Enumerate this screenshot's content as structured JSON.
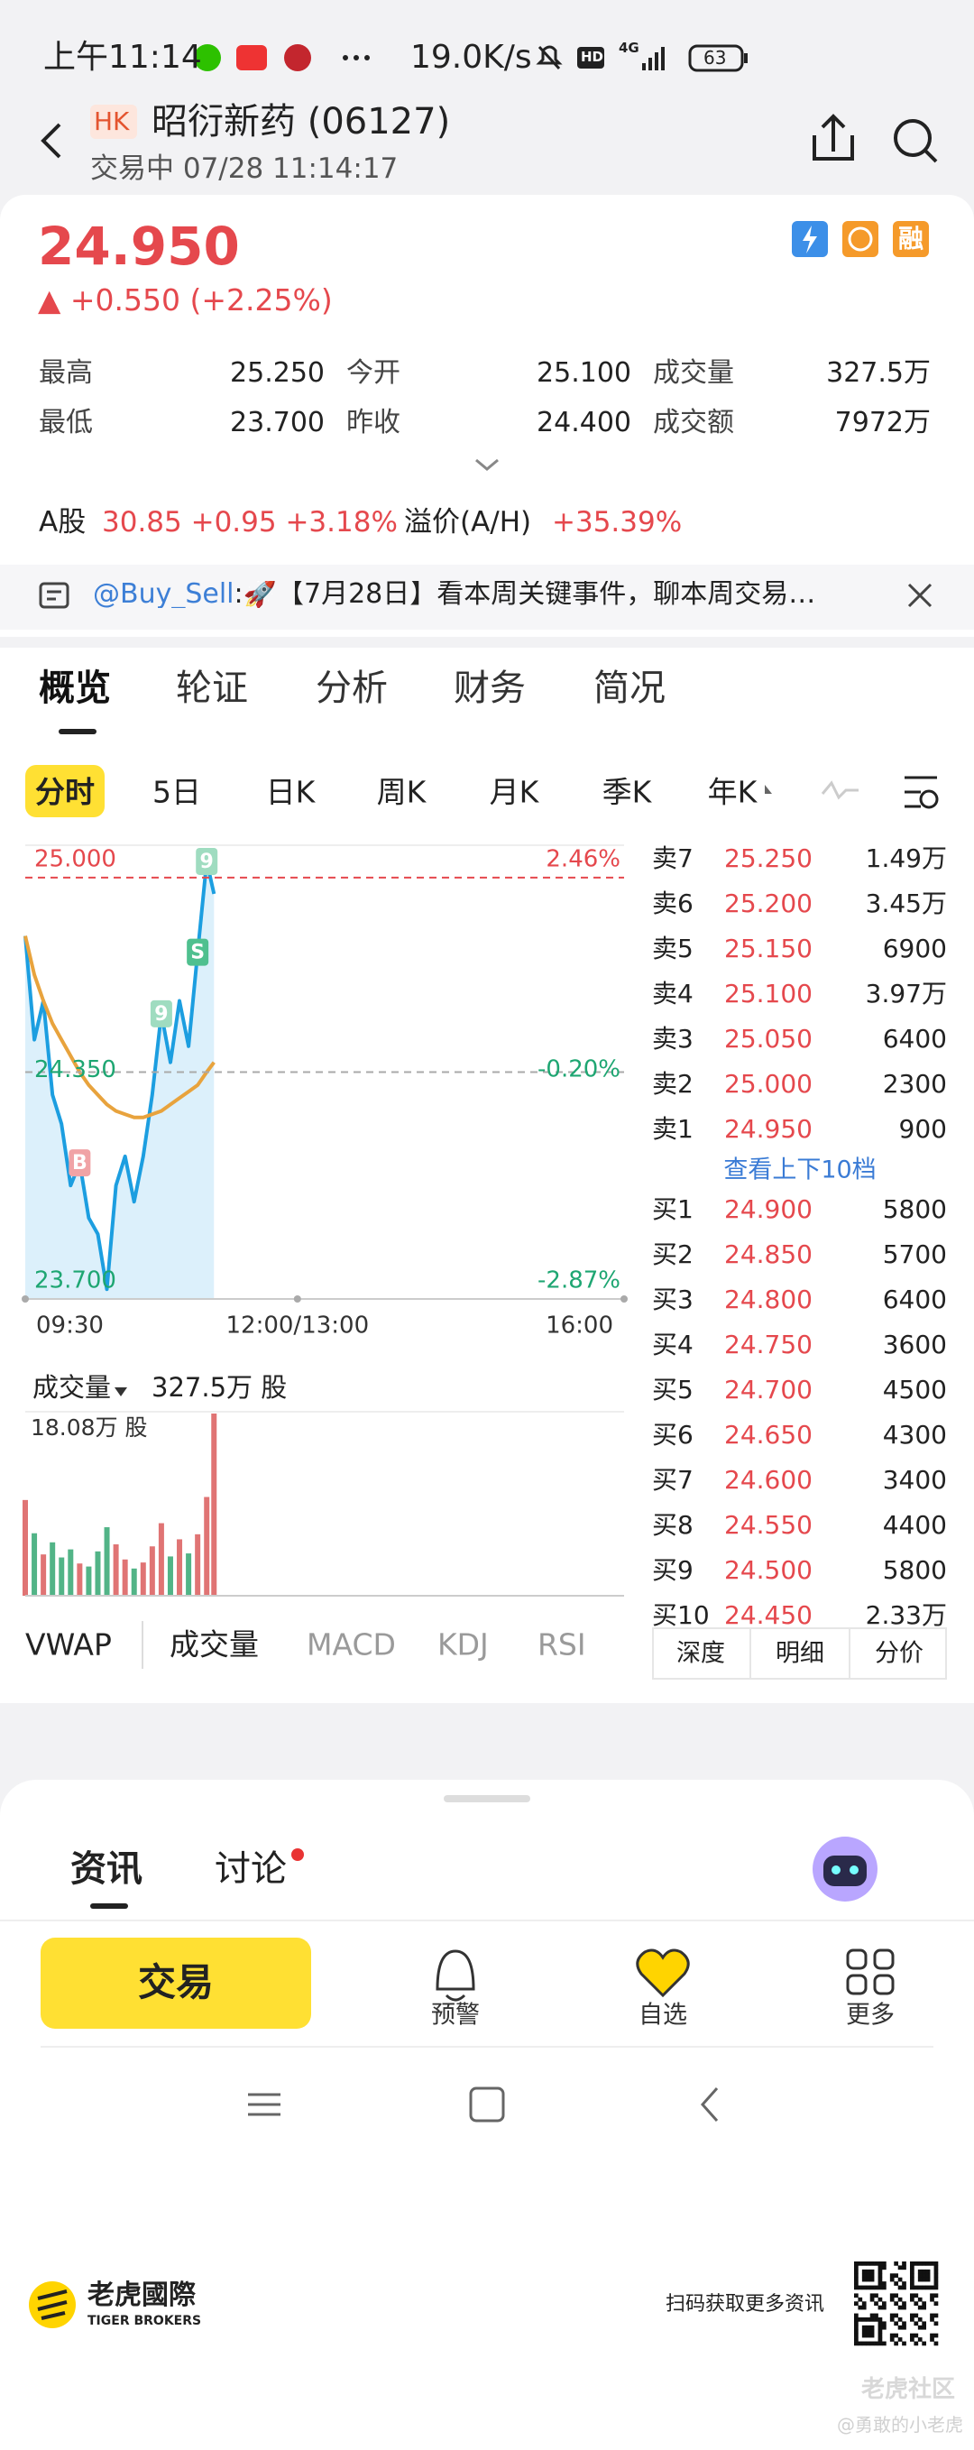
{
  "status_bar": {
    "time": "上午11:14",
    "speed": "19.0K/s",
    "hd": "HD",
    "network": "4G",
    "battery": "63"
  },
  "header": {
    "market": "HK",
    "title": "昭衍新药 (06127)",
    "status": "交易中 07/28 11:14:17"
  },
  "quote": {
    "price": "24.950",
    "change": "▲ +0.550 (+2.25%)",
    "badge": "融",
    "stats": [
      {
        "label": "最高",
        "value": "25.250"
      },
      {
        "label": "今开",
        "value": "25.100"
      },
      {
        "label": "成交量",
        "value": "327.5万"
      },
      {
        "label": "最低",
        "value": "23.700"
      },
      {
        "label": "昨收",
        "value": "24.400"
      },
      {
        "label": "成交额",
        "value": "7972万"
      }
    ],
    "a_share": {
      "label": "A股",
      "value": "30.85 +0.95 +3.18%",
      "premium_label": "溢价(A/H)",
      "premium": "+35.39%"
    }
  },
  "news": {
    "author": "@Buy_Sell",
    "text": ":🚀【7月28日】看本周关键事件，聊本周交易…"
  },
  "tabs": [
    "概览",
    "轮证",
    "分析",
    "财务",
    "简况"
  ],
  "chart_tabs": [
    "分时",
    "5日",
    "日K",
    "周K",
    "月K",
    "季K",
    "年K"
  ],
  "chart_data": [
    {
      "type": "line",
      "x": [
        "09:30",
        "09:35",
        "09:40",
        "09:45",
        "09:50",
        "09:55",
        "10:00",
        "10:05",
        "10:10",
        "10:15",
        "10:20",
        "10:25",
        "10:30",
        "10:35",
        "10:40",
        "10:45",
        "10:50",
        "10:55",
        "11:00",
        "11:05",
        "11:10",
        "11:14"
      ],
      "series": [
        {
          "color": "#1c9ee0",
          "fill": "#dcf0fb",
          "values": [
            24.82,
            24.5,
            24.62,
            24.33,
            24.24,
            24.05,
            24.12,
            23.95,
            23.9,
            23.73,
            24.05,
            24.14,
            24.0,
            24.14,
            24.33,
            24.58,
            24.43,
            24.62,
            24.48,
            24.77,
            25.05,
            24.95
          ]
        },
        {
          "color": "#e8a33d",
          "values": [
            24.82,
            24.7,
            24.62,
            24.55,
            24.5,
            24.45,
            24.4,
            24.36,
            24.33,
            24.3,
            24.28,
            24.27,
            24.26,
            24.26,
            24.27,
            24.28,
            24.3,
            24.32,
            24.34,
            24.36,
            24.4,
            24.43
          ]
        }
      ],
      "xlim": [
        "09:30",
        "16:00"
      ],
      "xticks": [
        "09:30",
        "12:00/13:00",
        "16:00"
      ],
      "ylim": [
        23.7,
        25.1
      ],
      "yticks": [
        {
          "value": 25.0,
          "label": "25.000"
        },
        {
          "value": 24.35,
          "label": "24.350"
        },
        {
          "value": 23.7,
          "label": "23.700"
        }
      ],
      "y2lim": [
        -2.87,
        2.87
      ],
      "y2ticks": [
        {
          "value": 2.46,
          "label": "2.46%"
        },
        {
          "value": -0.2,
          "label": "-0.20%"
        },
        {
          "value": -2.87,
          "label": "-2.87%"
        }
      ],
      "markers": [
        {
          "label": "B",
          "x": "10:00",
          "color": "#f0a3a6"
        },
        {
          "label": "9",
          "x": "10:45",
          "color": "#9fdcc0"
        },
        {
          "label": "S",
          "x": "11:05",
          "color": "#4fc08f"
        },
        {
          "label": "9",
          "x": "11:10",
          "color": "#9fdcc0"
        }
      ]
    },
    {
      "type": "bar",
      "title": "成交量",
      "subtitle": "327.5万 股",
      "x": [
        "09:30",
        "09:35",
        "09:40",
        "09:45",
        "09:50",
        "09:55",
        "10:00",
        "10:05",
        "10:10",
        "10:15",
        "10:20",
        "10:25",
        "10:30",
        "10:35",
        "10:40",
        "10:45",
        "10:50",
        "10:55",
        "11:00",
        "11:05",
        "11:10",
        "11:14"
      ],
      "values": [
        9.5,
        6.2,
        4.1,
        5.3,
        3.8,
        4.6,
        3.2,
        2.9,
        4.4,
        6.8,
        5.1,
        3.6,
        2.7,
        3.3,
        4.9,
        7.2,
        3.9,
        5.6,
        4.2,
        6.1,
        9.8,
        18.08
      ],
      "colors": [
        "#e07474",
        "#52b487",
        "#e07474",
        "#52b487",
        "#52b487",
        "#52b487",
        "#e07474",
        "#52b487",
        "#52b487",
        "#52b487",
        "#e07474",
        "#e07474",
        "#52b487",
        "#e07474",
        "#e07474",
        "#e07474",
        "#52b487",
        "#e07474",
        "#52b487",
        "#e07474",
        "#e07474",
        "#e07474"
      ],
      "ylim": [
        0,
        18.08
      ],
      "yticks": [
        {
          "value": 18.08,
          "label": "18.08万 股"
        }
      ]
    }
  ],
  "order_book": {
    "asks": [
      {
        "label": "卖7",
        "price": "25.250",
        "volume": "1.49万"
      },
      {
        "label": "卖6",
        "price": "25.200",
        "volume": "3.45万"
      },
      {
        "label": "卖5",
        "price": "25.150",
        "volume": "6900"
      },
      {
        "label": "卖4",
        "price": "25.100",
        "volume": "3.97万"
      },
      {
        "label": "卖3",
        "price": "25.050",
        "volume": "6400"
      },
      {
        "label": "卖2",
        "price": "25.000",
        "volume": "2300"
      },
      {
        "label": "卖1",
        "price": "24.950",
        "volume": "900"
      }
    ],
    "more": "查看上下10档",
    "bids": [
      {
        "label": "买1",
        "price": "24.900",
        "volume": "5800"
      },
      {
        "label": "买2",
        "price": "24.850",
        "volume": "5700"
      },
      {
        "label": "买3",
        "price": "24.800",
        "volume": "6400"
      },
      {
        "label": "买4",
        "price": "24.750",
        "volume": "3600"
      },
      {
        "label": "买5",
        "price": "24.700",
        "volume": "4500"
      },
      {
        "label": "买6",
        "price": "24.650",
        "volume": "4300"
      },
      {
        "label": "买7",
        "price": "24.600",
        "volume": "3400"
      },
      {
        "label": "买8",
        "price": "24.550",
        "volume": "4400"
      },
      {
        "label": "买9",
        "price": "24.500",
        "volume": "5800"
      },
      {
        "label": "买10",
        "price": "24.450",
        "volume": "2.33万"
      }
    ],
    "tabs": [
      "深度",
      "明细",
      "分价"
    ]
  },
  "indicators": [
    "VWAP",
    "成交量",
    "MACD",
    "KDJ",
    "RSI"
  ],
  "bottom_tabs": [
    "资讯",
    "讨论"
  ],
  "actions": {
    "trade": "交易",
    "items": [
      "预警",
      "自选",
      "更多"
    ]
  },
  "footer": {
    "brand": "老虎國際",
    "brand_en": "TIGER BROKERS",
    "qr_text": "扫码获取更多资讯",
    "watermark": "老虎社区",
    "user": "@勇敢的小老虎"
  }
}
